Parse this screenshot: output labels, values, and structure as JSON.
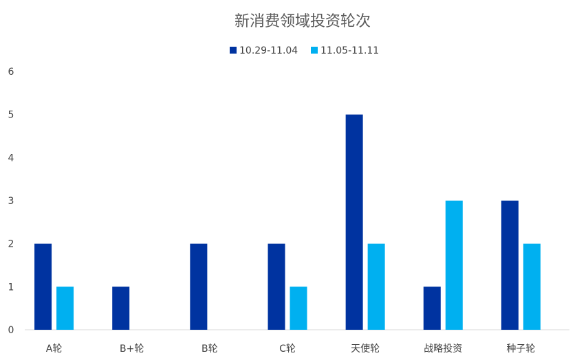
{
  "chart_data": {
    "type": "bar",
    "title": "新消费领域投资轮次",
    "categories": [
      "A轮",
      "B+轮",
      "B轮",
      "C轮",
      "天使轮",
      "战略投资",
      "种子轮"
    ],
    "series": [
      {
        "name": "10.29-11.04",
        "color": "#0033a0",
        "values": [
          2,
          1,
          2,
          2,
          5,
          1,
          3
        ]
      },
      {
        "name": "11.05-11.11",
        "color": "#00b0f0",
        "values": [
          1,
          0,
          0,
          1,
          2,
          3,
          2
        ]
      }
    ],
    "ylim": [
      0,
      6
    ],
    "yticks": [
      0,
      1,
      2,
      3,
      4,
      5,
      6
    ],
    "grid": false,
    "legend_position": "top"
  }
}
